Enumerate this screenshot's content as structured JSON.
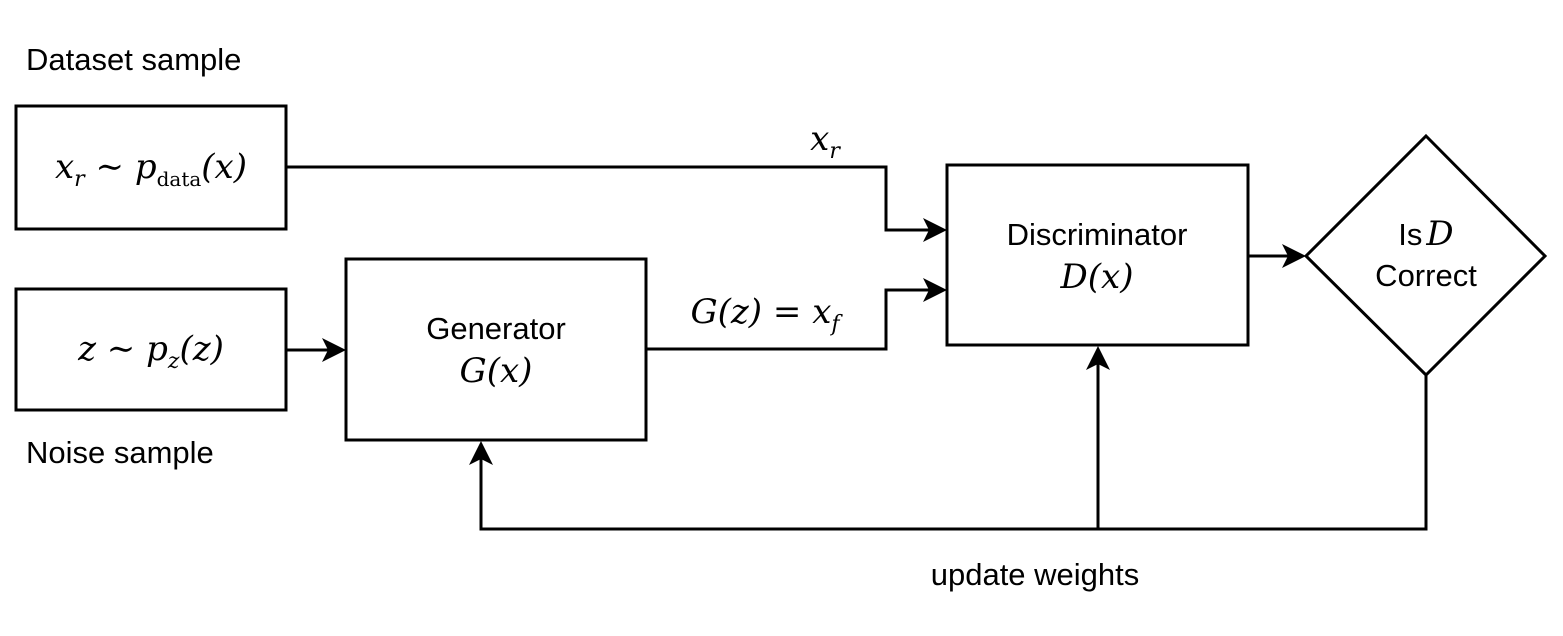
{
  "labels": {
    "dataset_sample": "Dataset sample",
    "noise_sample": "Noise sample",
    "update_weights": "update weights"
  },
  "nodes": {
    "real_sample": {
      "var": "x",
      "var_sub": "r",
      "relation": "∼",
      "dist": "p",
      "dist_sub": "data",
      "arg": "(x)"
    },
    "noise": {
      "var": "z",
      "relation": "∼",
      "dist": "p",
      "dist_sub": "z",
      "arg": "(z)"
    },
    "generator": {
      "title": "Generator",
      "func": "G",
      "arg": "(x)"
    },
    "discriminator": {
      "title": "Discriminator",
      "func": "D",
      "arg": "(x)"
    },
    "decision": {
      "line1_text": "Is",
      "line1_var": "D",
      "line2": "Correct"
    }
  },
  "edges": {
    "real_label": {
      "var": "x",
      "sub": "r"
    },
    "fake_label": {
      "func": "G",
      "arg": "(z)",
      "eq": "=",
      "var": "x",
      "sub": "f"
    }
  }
}
